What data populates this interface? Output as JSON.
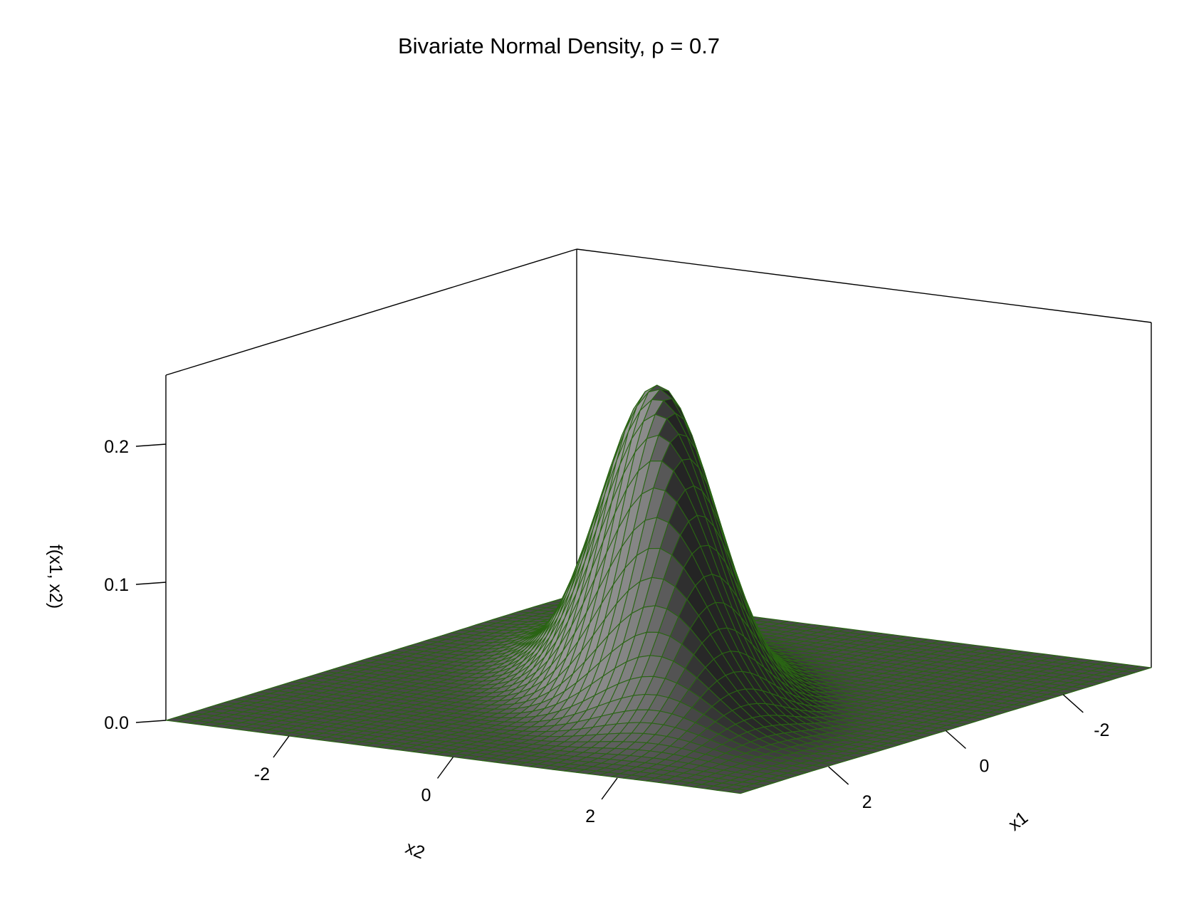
{
  "chart_data": {
    "type": "surface3d",
    "title": "Bivariate Normal Density, ρ = 0.7",
    "xlabel": "x1",
    "ylabel": "x2",
    "zlabel": "f(x1, x2)",
    "x1_range": [
      -3.5,
      3.5
    ],
    "x2_range": [
      -3.5,
      3.5
    ],
    "z_range": [
      0,
      0.25
    ],
    "x1_ticks": [
      {
        "value": -2,
        "label": "-2"
      },
      {
        "value": 0,
        "label": "0"
      },
      {
        "value": 2,
        "label": "2"
      }
    ],
    "x2_ticks": [
      {
        "value": -2,
        "label": "-2"
      },
      {
        "value": 0,
        "label": "0"
      },
      {
        "value": 2,
        "label": "2"
      }
    ],
    "z_ticks": [
      {
        "value": 0.0,
        "label": "0.0"
      },
      {
        "value": 0.1,
        "label": "0.1"
      },
      {
        "value": 0.2,
        "label": "0.2"
      }
    ],
    "rho": 0.7,
    "mean": [
      0,
      0
    ],
    "sd": [
      1,
      1
    ],
    "grid_points_per_axis": 50,
    "surface_color": "#8c8c8c",
    "mesh_color": "#2a6414",
    "box": true
  }
}
